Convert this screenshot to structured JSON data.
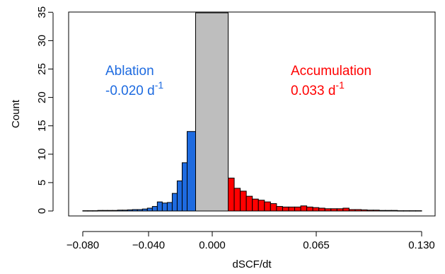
{
  "chart_data": {
    "type": "bar",
    "xlabel": "dSCF/dt",
    "ylabel": "Count",
    "xticks": [
      {
        "value": -0.08,
        "label": "−0.080"
      },
      {
        "value": -0.04,
        "label": "−0.040"
      },
      {
        "value": 0.0,
        "label": "0.000"
      },
      {
        "value": 0.065,
        "label": "0.065"
      },
      {
        "value": 0.13,
        "label": "0.130"
      }
    ],
    "yticks": [
      0,
      5,
      10,
      15,
      20,
      25,
      30,
      35
    ],
    "ylim": [
      0,
      35.5
    ],
    "grid": false,
    "legend": "none",
    "annotations": [
      {
        "name": "ablation",
        "label": "Ablation",
        "value": "-0.020 d",
        "exponent": "-1",
        "color": "#1E6BE0"
      },
      {
        "name": "accumulation",
        "label": "Accumulation",
        "value": "0.033 d",
        "exponent": "-1",
        "color": "#FF0000"
      }
    ],
    "series": [
      {
        "class": "ablation",
        "color": "#1E6BE0",
        "bars": [
          {
            "x0": -0.08,
            "x1": -0.0775,
            "count": 0.05
          },
          {
            "x0": -0.0775,
            "x1": -0.075,
            "count": 0.05
          },
          {
            "x0": -0.075,
            "x1": -0.0725,
            "count": 0.05
          },
          {
            "x0": -0.0725,
            "x1": -0.07,
            "count": 0.1
          },
          {
            "x0": -0.07,
            "x1": -0.0675,
            "count": 0.1
          },
          {
            "x0": -0.0675,
            "x1": -0.065,
            "count": 0.1
          },
          {
            "x0": -0.065,
            "x1": -0.0625,
            "count": 0.1
          },
          {
            "x0": -0.0625,
            "x1": -0.06,
            "count": 0.15
          },
          {
            "x0": -0.06,
            "x1": -0.0575,
            "count": 0.15
          },
          {
            "x0": -0.0575,
            "x1": -0.055,
            "count": 0.2
          },
          {
            "x0": -0.055,
            "x1": -0.0525,
            "count": 0.25
          },
          {
            "x0": -0.0525,
            "x1": -0.05,
            "count": 0.25
          },
          {
            "x0": -0.05,
            "x1": -0.0475,
            "count": 0.35
          },
          {
            "x0": -0.0475,
            "x1": -0.045,
            "count": 0.5
          },
          {
            "x0": -0.045,
            "x1": -0.0425,
            "count": 0.8
          },
          {
            "x0": -0.0425,
            "x1": -0.04,
            "count": 1.6
          },
          {
            "x0": -0.04,
            "x1": -0.0375,
            "count": 1.4
          },
          {
            "x0": -0.0375,
            "x1": -0.035,
            "count": 1.5
          },
          {
            "x0": -0.035,
            "x1": -0.0325,
            "count": 3.1
          },
          {
            "x0": -0.0325,
            "x1": -0.03,
            "count": 5.3
          },
          {
            "x0": -0.03,
            "x1": -0.0275,
            "count": 8.5
          },
          {
            "x0": -0.0275,
            "x1": -0.025,
            "count": 14.0
          }
        ]
      },
      {
        "class": "stable",
        "color": "#BEBEBE",
        "bars": [
          {
            "x0": -0.025,
            "x1": 0.0,
            "count": 34.9
          }
        ]
      },
      {
        "class": "accumulation",
        "color": "#FF0000",
        "bars": [
          {
            "x0": 0.0,
            "x1": 0.0025,
            "count": 5.8
          },
          {
            "x0": 0.0025,
            "x1": 0.005,
            "count": 4.0
          },
          {
            "x0": 0.005,
            "x1": 0.0075,
            "count": 3.5
          },
          {
            "x0": 0.0075,
            "x1": 0.01,
            "count": 2.6
          },
          {
            "x0": 0.01,
            "x1": 0.0125,
            "count": 2.1
          },
          {
            "x0": 0.0125,
            "x1": 0.015,
            "count": 1.9
          },
          {
            "x0": 0.015,
            "x1": 0.0175,
            "count": 1.6
          },
          {
            "x0": 0.0175,
            "x1": 0.02,
            "count": 1.3
          },
          {
            "x0": 0.02,
            "x1": 0.0225,
            "count": 0.8
          },
          {
            "x0": 0.0225,
            "x1": 0.025,
            "count": 0.7
          },
          {
            "x0": 0.025,
            "x1": 0.0275,
            "count": 0.7
          },
          {
            "x0": 0.0275,
            "x1": 0.03,
            "count": 0.7
          },
          {
            "x0": 0.03,
            "x1": 0.0325,
            "count": 0.9
          },
          {
            "x0": 0.0325,
            "x1": 0.035,
            "count": 0.7
          },
          {
            "x0": 0.035,
            "x1": 0.0375,
            "count": 0.6
          },
          {
            "x0": 0.0375,
            "x1": 0.04,
            "count": 0.5
          },
          {
            "x0": 0.04,
            "x1": 0.0425,
            "count": 0.4
          },
          {
            "x0": 0.0425,
            "x1": 0.045,
            "count": 0.4
          },
          {
            "x0": 0.045,
            "x1": 0.0475,
            "count": 0.4
          },
          {
            "x0": 0.0475,
            "x1": 0.05,
            "count": 0.5
          },
          {
            "x0": 0.05,
            "x1": 0.0525,
            "count": 0.25
          },
          {
            "x0": 0.0525,
            "x1": 0.055,
            "count": 0.25
          },
          {
            "x0": 0.055,
            "x1": 0.0575,
            "count": 0.2
          },
          {
            "x0": 0.0575,
            "x1": 0.06,
            "count": 0.15
          },
          {
            "x0": 0.06,
            "x1": 0.0625,
            "count": 0.15
          },
          {
            "x0": 0.0625,
            "x1": 0.065,
            "count": 0.1
          },
          {
            "x0": 0.065,
            "x1": 0.0675,
            "count": 0.1
          },
          {
            "x0": 0.0675,
            "x1": 0.07,
            "count": 0.1
          },
          {
            "x0": 0.07,
            "x1": 0.0725,
            "count": 0.05
          },
          {
            "x0": 0.0725,
            "x1": 0.075,
            "count": 0.05
          },
          {
            "x0": 0.075,
            "x1": 0.0775,
            "count": 0.05
          },
          {
            "x0": 0.0775,
            "x1": 0.08,
            "count": 0.05
          }
        ]
      }
    ]
  }
}
